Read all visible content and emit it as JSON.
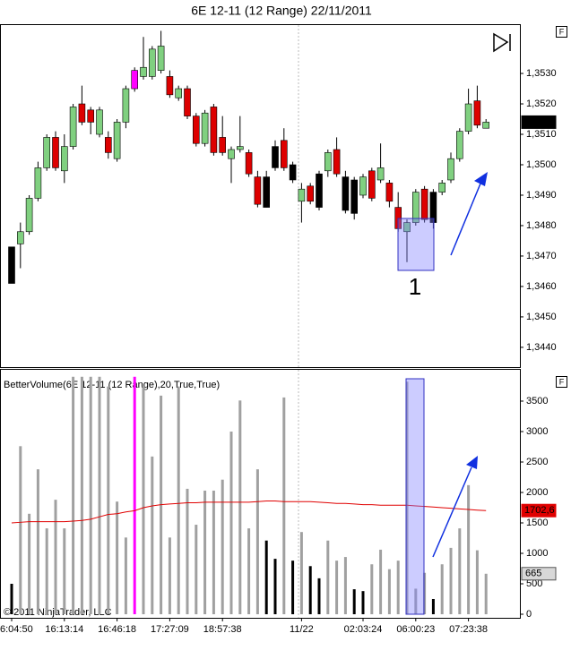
{
  "title": "6E 12-11 (12 Range)  22/11/2011",
  "panel_buttons": [
    "F",
    "F"
  ],
  "copyright": "© 2011 NinjaTrader, LLC",
  "chart_data": [
    {
      "type": "candlestick",
      "open": [
        1.3473,
        1.3474,
        1.3478,
        1.3489,
        1.3499,
        1.3509,
        1.3498,
        1.3506,
        1.352,
        1.3518,
        1.351,
        1.3509,
        1.3502,
        1.3514,
        1.3525,
        1.3529,
        1.3529,
        1.3531,
        1.3529,
        1.3522,
        1.3525,
        1.3516,
        1.3507,
        1.3519,
        1.3509,
        1.3502,
        1.3505,
        1.3504,
        1.3496,
        1.3496,
        1.3499,
        1.3508,
        1.35,
        1.3488,
        1.3493,
        1.3497,
        1.3498,
        1.3505,
        1.3496,
        1.3495,
        1.349,
        1.3498,
        1.3495,
        1.3494,
        1.3486,
        1.3478,
        1.3481,
        1.3492,
        1.3481,
        1.3491,
        1.3495,
        1.3502,
        1.3511,
        1.3521,
        1.3512
      ],
      "high": [
        1.3473,
        1.3481,
        1.349,
        1.3501,
        1.351,
        1.3511,
        1.351,
        1.352,
        1.3526,
        1.3519,
        1.3519,
        1.3511,
        1.3515,
        1.3526,
        1.3532,
        1.3542,
        1.3539,
        1.3544,
        1.3531,
        1.3526,
        1.3526,
        1.3517,
        1.3518,
        1.352,
        1.3516,
        1.3506,
        1.3516,
        1.3505,
        1.3498,
        1.3498,
        1.3508,
        1.3512,
        1.3501,
        1.3494,
        1.3494,
        1.3498,
        1.3505,
        1.3509,
        1.3498,
        1.3496,
        1.3497,
        1.3499,
        1.3507,
        1.3495,
        1.3491,
        1.3482,
        1.3492,
        1.3493,
        1.3492,
        1.3495,
        1.3504,
        1.3512,
        1.3525,
        1.3526,
        1.3515
      ],
      "low": [
        1.3461,
        1.3466,
        1.3477,
        1.3488,
        1.3498,
        1.3498,
        1.3494,
        1.3505,
        1.3513,
        1.351,
        1.3509,
        1.3502,
        1.3501,
        1.3512,
        1.3524,
        1.3528,
        1.3528,
        1.353,
        1.3522,
        1.3521,
        1.3515,
        1.3506,
        1.3506,
        1.3503,
        1.3503,
        1.3494,
        1.3504,
        1.3496,
        1.3486,
        1.3486,
        1.3498,
        1.3498,
        1.3494,
        1.3481,
        1.3487,
        1.3485,
        1.3496,
        1.3496,
        1.3484,
        1.3482,
        1.3489,
        1.3488,
        1.3494,
        1.3486,
        1.3478,
        1.3468,
        1.348,
        1.3481,
        1.3479,
        1.349,
        1.3494,
        1.3501,
        1.351,
        1.3512,
        1.3512
      ],
      "close": [
        1.3461,
        1.3478,
        1.3489,
        1.3499,
        1.3509,
        1.3499,
        1.3506,
        1.3519,
        1.3514,
        1.3514,
        1.3518,
        1.3504,
        1.3514,
        1.3525,
        1.3531,
        1.3532,
        1.3538,
        1.3539,
        1.3523,
        1.3525,
        1.3516,
        1.3507,
        1.3517,
        1.3504,
        1.3504,
        1.3505,
        1.3506,
        1.3497,
        1.3487,
        1.3486,
        1.3506,
        1.3499,
        1.3495,
        1.3492,
        1.3488,
        1.3486,
        1.3504,
        1.3497,
        1.3485,
        1.3484,
        1.3496,
        1.3489,
        1.3499,
        1.3488,
        1.3479,
        1.3481,
        1.3491,
        1.3482,
        1.3491,
        1.3494,
        1.3502,
        1.3511,
        1.352,
        1.3513,
        1.3514
      ],
      "colors": [
        "#000000",
        "#80d080",
        "#80d080",
        "#80d080",
        "#80d080",
        "#dd0000",
        "#80d080",
        "#80d080",
        "#dd0000",
        "#dd0000",
        "#80d080",
        "#dd0000",
        "#80d080",
        "#80d080",
        "#ff00ff",
        "#80d080",
        "#80d080",
        "#80d080",
        "#dd0000",
        "#80d080",
        "#dd0000",
        "#dd0000",
        "#80d080",
        "#dd0000",
        "#dd0000",
        "#80d080",
        "#80d080",
        "#dd0000",
        "#dd0000",
        "#000000",
        "#000000",
        "#dd0000",
        "#000000",
        "#80d080",
        "#dd0000",
        "#000000",
        "#80d080",
        "#dd0000",
        "#000000",
        "#000000",
        "#80d080",
        "#dd0000",
        "#80d080",
        "#dd0000",
        "#dd0000",
        "#80d080",
        "#80d080",
        "#dd0000",
        "#000000",
        "#80d080",
        "#80d080",
        "#80d080",
        "#80d080",
        "#dd0000",
        "#80d080"
      ],
      "last_label": "1,3514",
      "annotation": "1",
      "ylim": [
        1.34335,
        1.35459
      ],
      "yticks": [
        {
          "value": 1.344,
          "label": "1,3440"
        },
        {
          "value": 1.345,
          "label": "1,3450"
        },
        {
          "value": 1.346,
          "label": "1,3460"
        },
        {
          "value": 1.347,
          "label": "1,3470"
        },
        {
          "value": 1.348,
          "label": "1,3480"
        },
        {
          "value": 1.349,
          "label": "1,3490"
        },
        {
          "value": 1.35,
          "label": "1,3500"
        },
        {
          "value": 1.351,
          "label": "1,3510"
        },
        {
          "value": 1.352,
          "label": "1,3520"
        },
        {
          "value": 1.353,
          "label": "1,3530"
        }
      ]
    },
    {
      "type": "bar",
      "title": "BetterVolume(6E 12-11 (12 Range),20,True,True)",
      "categories": [
        "6:04:50",
        null,
        null,
        null,
        null,
        null,
        "16:13:14",
        null,
        null,
        null,
        null,
        null,
        "16:46:18",
        null,
        null,
        null,
        null,
        null,
        "17:27:09",
        null,
        null,
        null,
        null,
        null,
        "18:57:38",
        null,
        null,
        null,
        null,
        null,
        null,
        null,
        null,
        "11/22",
        null,
        null,
        null,
        null,
        null,
        null,
        "02:03:24",
        null,
        null,
        null,
        null,
        null,
        "06:00:23",
        null,
        null,
        null,
        null,
        null,
        "07:23:38",
        null,
        null
      ],
      "values": [
        500,
        2760,
        1650,
        2380,
        1410,
        1880,
        1410,
        3900,
        3900,
        3900,
        3900,
        3740,
        1850,
        1260,
        3900,
        3740,
        2590,
        3590,
        1260,
        3740,
        2060,
        1470,
        2030,
        2030,
        2210,
        3000,
        3510,
        1410,
        2380,
        1210,
        910,
        3560,
        880,
        1350,
        790,
        590,
        1210,
        880,
        940,
        410,
        380,
        820,
        1060,
        740,
        880,
        3820,
        420,
        680,
        250,
        820,
        1090,
        1410,
        2120,
        1050,
        665
      ],
      "colors": [
        "#000000",
        "#a0a0a0",
        "#a0a0a0",
        "#a0a0a0",
        "#a0a0a0",
        "#a0a0a0",
        "#a0a0a0",
        "#a0a0a0",
        "#a0a0a0",
        "#a0a0a0",
        "#a0a0a0",
        "#a0a0a0",
        "#a0a0a0",
        "#a0a0a0",
        "#ff00ff",
        "#a0a0a0",
        "#a0a0a0",
        "#a0a0a0",
        "#a0a0a0",
        "#a0a0a0",
        "#a0a0a0",
        "#a0a0a0",
        "#a0a0a0",
        "#a0a0a0",
        "#a0a0a0",
        "#a0a0a0",
        "#a0a0a0",
        "#a0a0a0",
        "#a0a0a0",
        "#000000",
        "#000000",
        "#a0a0a0",
        "#000000",
        "#a0a0a0",
        "#000000",
        "#000000",
        "#a0a0a0",
        "#a0a0a0",
        "#a0a0a0",
        "#000000",
        "#000000",
        "#a0a0a0",
        "#a0a0a0",
        "#a0a0a0",
        "#a0a0a0",
        "#a0a0a0",
        "#a0a0a0",
        "#a0a0a0",
        "#000000",
        "#a0a0a0",
        "#a0a0a0",
        "#a0a0a0",
        "#a0a0a0",
        "#a0a0a0",
        "#a0a0a0"
      ],
      "last_label": "665",
      "average_values": [
        1500,
        1510,
        1520,
        1520,
        1520,
        1520,
        1520,
        1530,
        1540,
        1560,
        1600,
        1640,
        1650,
        1680,
        1700,
        1750,
        1780,
        1800,
        1810,
        1820,
        1830,
        1830,
        1840,
        1840,
        1840,
        1840,
        1840,
        1840,
        1850,
        1860,
        1860,
        1850,
        1850,
        1850,
        1850,
        1840,
        1830,
        1820,
        1820,
        1810,
        1800,
        1800,
        1790,
        1790,
        1790,
        1790,
        1780,
        1770,
        1760,
        1750,
        1740,
        1730,
        1720,
        1710,
        1702.6
      ],
      "average_color": "#e00000",
      "average_last_label": "1702,6",
      "ylim": [
        0,
        3985
      ],
      "yticks": [
        0,
        500,
        1000,
        1500,
        2000,
        2500,
        3000,
        3500
      ]
    }
  ]
}
